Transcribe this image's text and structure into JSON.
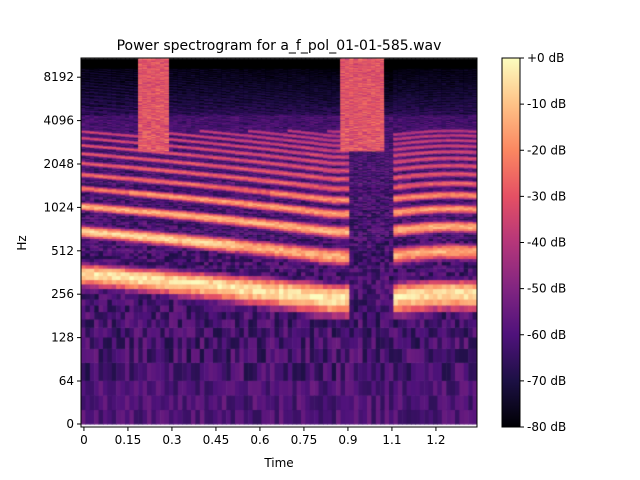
{
  "chart_data": {
    "type": "heatmap",
    "title": "Power spectrogram for a_f_pol_01-01-585.wav",
    "xlabel": "Time",
    "ylabel": "Hz",
    "xlim": [
      -0.01,
      1.34
    ],
    "x_ticks": [
      0,
      0.15,
      0.3,
      0.45,
      0.6,
      0.75,
      0.9,
      1.05,
      1.2
    ],
    "x_tick_labels": [
      "0",
      "0.15",
      "0.3",
      "0.45",
      "0.6",
      "0.75",
      "0.9",
      "1.1",
      "1.2"
    ],
    "y_scale": "symlog",
    "y_linthresh": 64,
    "ylim": [
      0,
      11025
    ],
    "y_ticks": [
      0,
      64,
      128,
      256,
      512,
      1024,
      2048,
      4096,
      8192
    ],
    "y_tick_labels": [
      "0",
      "64",
      "128",
      "256",
      "512",
      "1024",
      "2048",
      "4096",
      "8192"
    ],
    "colorbar": {
      "range": [
        -80,
        0
      ],
      "ticks": [
        0,
        -10,
        -20,
        -30,
        -40,
        -50,
        -60,
        -70,
        -80
      ],
      "tick_labels": [
        "+0 dB",
        "-10 dB",
        "-20 dB",
        "-30 dB",
        "-40 dB",
        "-50 dB",
        "-60 dB",
        "-70 dB",
        "-80 dB"
      ],
      "colormap": "magma",
      "colormap_stops": [
        "#000004",
        "#1c1044",
        "#4f127b",
        "#812581",
        "#b5367a",
        "#e55064",
        "#fb8761",
        "#fec287",
        "#fcfdbf"
      ]
    }
  }
}
